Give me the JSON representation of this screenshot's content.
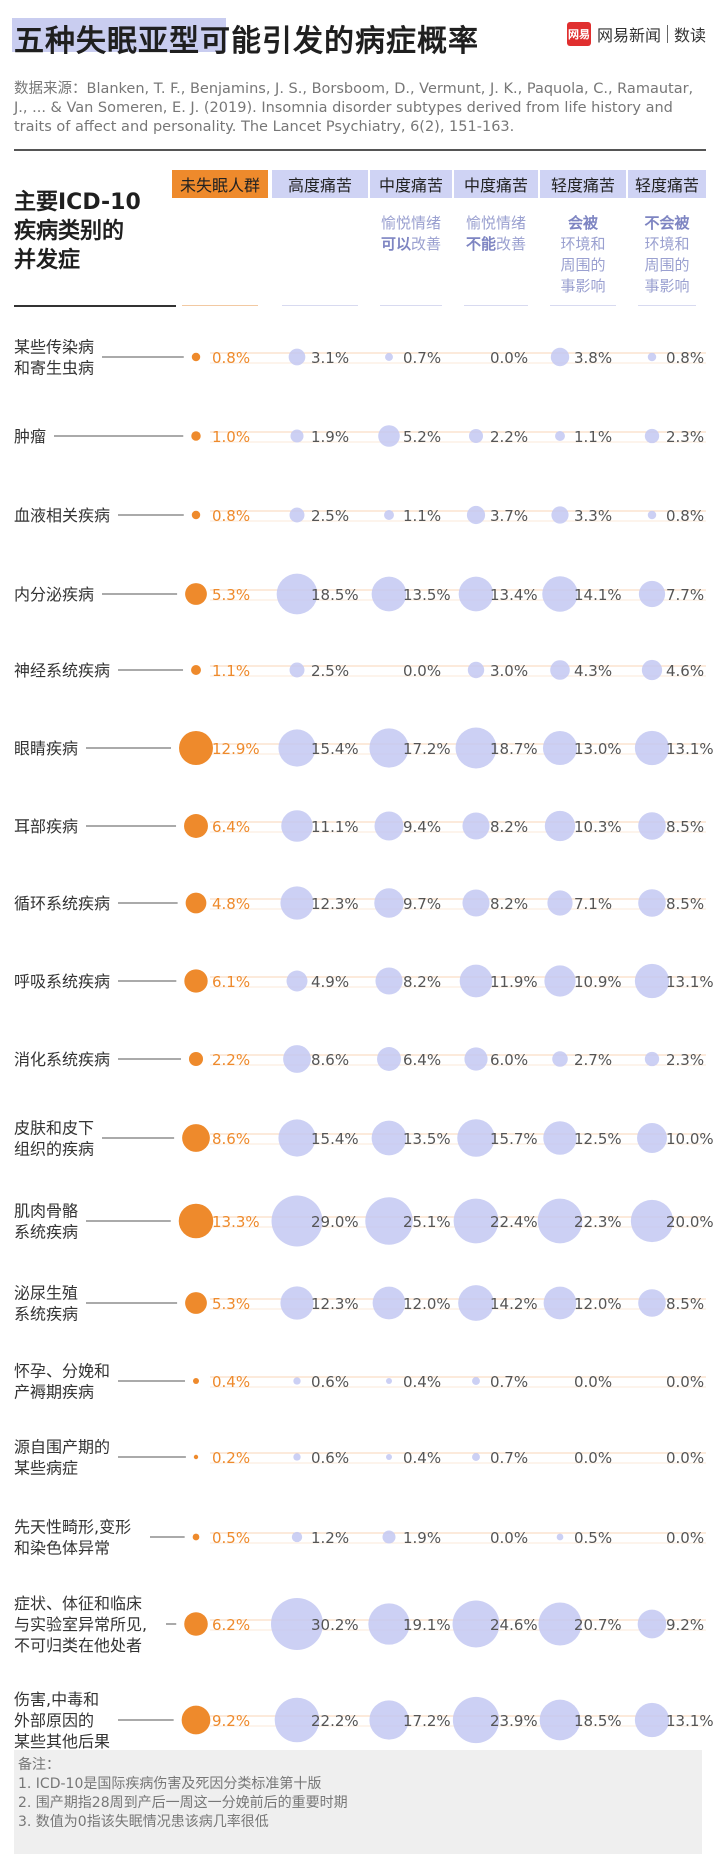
{
  "header": {
    "title_highlight": "五种失眠亚型",
    "title_rest": "可能引发的病症概率",
    "brand_logo": "网易",
    "brand_name": "网易新闻",
    "brand_section": "数读"
  },
  "source_text": "数据来源：Blanken, T. F., Benjamins, J. S., Borsboom, D., Vermunt, J. K., Paquola, C., Ramautar, J., ... & Van Someren, E. J. (2019). Insomnia disorder subtypes derived from life history and traits of affect and personality. The Lancet Psychiatry, 6(2), 151-163.",
  "notes": {
    "title": "备注：",
    "items": [
      "1. ICD-10是国际疾病伤害及死因分类标准第十版",
      "2. 围产期指28周到产后一周这一分娩前后的重要时期",
      "3. 数值为0指该失眠情况患该病几率很低"
    ]
  },
  "colors": {
    "base_bubble": "#ee8a2c",
    "subtype_bubble": "#c3c8f2",
    "base_label": "#ee8a2c",
    "subtype_label": "#555555",
    "row_line": "#f6c9a0"
  },
  "chart_data": {
    "type": "bubble-table",
    "title": "五种失眠亚型可能引发的病症概率",
    "row_axis_title": [
      "主要ICD-10",
      "疾病类别的",
      "并发症"
    ],
    "unit": "%",
    "columns": [
      {
        "name": "未失眠人群",
        "sub": []
      },
      {
        "name": "高度痛苦",
        "sub": []
      },
      {
        "name": "中度痛苦",
        "sub": [
          [
            {
              "t": "愉悦情绪",
              "b": false
            }
          ],
          [
            {
              "t": "可以",
              "b": true
            },
            {
              "t": "改善",
              "b": false
            }
          ]
        ]
      },
      {
        "name": "中度痛苦",
        "sub": [
          [
            {
              "t": "愉悦情绪",
              "b": false
            }
          ],
          [
            {
              "t": "不能",
              "b": true
            },
            {
              "t": "改善",
              "b": false
            }
          ]
        ]
      },
      {
        "name": "轻度痛苦",
        "sub": [
          [
            {
              "t": "会被",
              "b": true
            }
          ],
          [
            {
              "t": "环境和",
              "b": false
            }
          ],
          [
            {
              "t": "周围的",
              "b": false
            }
          ],
          [
            {
              "t": "事影响",
              "b": false
            }
          ]
        ]
      },
      {
        "name": "轻度痛苦",
        "sub": [
          [
            {
              "t": "不会被",
              "b": true
            }
          ],
          [
            {
              "t": "环境和",
              "b": false
            }
          ],
          [
            {
              "t": "周围的",
              "b": false
            }
          ],
          [
            {
              "t": "事影响",
              "b": false
            }
          ]
        ]
      }
    ],
    "rows": [
      {
        "label": [
          "某些传染病",
          "和寄生虫病"
        ],
        "values": [
          0.8,
          3.1,
          0.7,
          0.0,
          3.8,
          0.8
        ]
      },
      {
        "label": [
          "肿瘤"
        ],
        "values": [
          1.0,
          1.9,
          5.2,
          2.2,
          1.1,
          2.3
        ]
      },
      {
        "label": [
          "血液相关疾病"
        ],
        "values": [
          0.8,
          2.5,
          1.1,
          3.7,
          3.3,
          0.8
        ]
      },
      {
        "label": [
          "内分泌疾病"
        ],
        "values": [
          5.3,
          18.5,
          13.5,
          13.4,
          14.1,
          7.7
        ]
      },
      {
        "label": [
          "神经系统疾病"
        ],
        "values": [
          1.1,
          2.5,
          0.0,
          3.0,
          4.3,
          4.6
        ]
      },
      {
        "label": [
          "眼睛疾病"
        ],
        "values": [
          12.9,
          15.4,
          17.2,
          18.7,
          13.0,
          13.1
        ]
      },
      {
        "label": [
          "耳部疾病"
        ],
        "values": [
          6.4,
          11.1,
          9.4,
          8.2,
          10.3,
          8.5
        ]
      },
      {
        "label": [
          "循环系统疾病"
        ],
        "values": [
          4.8,
          12.3,
          9.7,
          8.2,
          7.1,
          8.5
        ]
      },
      {
        "label": [
          "呼吸系统疾病"
        ],
        "values": [
          6.1,
          4.9,
          8.2,
          11.9,
          10.9,
          13.1
        ]
      },
      {
        "label": [
          "消化系统疾病"
        ],
        "values": [
          2.2,
          8.6,
          6.4,
          6.0,
          2.7,
          2.3
        ]
      },
      {
        "label": [
          "皮肤和皮下",
          "组织的疾病"
        ],
        "values": [
          8.6,
          15.4,
          13.5,
          15.7,
          12.5,
          10.0
        ]
      },
      {
        "label": [
          "肌肉骨骼",
          "系统疾病"
        ],
        "values": [
          13.3,
          29.0,
          25.1,
          22.4,
          22.3,
          20.0
        ]
      },
      {
        "label": [
          "泌尿生殖",
          "系统疾病"
        ],
        "values": [
          5.3,
          12.3,
          12.0,
          14.2,
          12.0,
          8.5
        ]
      },
      {
        "label": [
          "怀孕、分娩和",
          "产褥期疾病"
        ],
        "values": [
          0.4,
          0.6,
          0.4,
          0.7,
          0.0,
          0.0
        ]
      },
      {
        "label": [
          "源自围产期的",
          "某些病症"
        ],
        "values": [
          0.2,
          0.6,
          0.4,
          0.7,
          0.0,
          0.0
        ]
      },
      {
        "label": [
          "先天性畸形,变形",
          "和染色体异常"
        ],
        "values": [
          0.5,
          1.2,
          1.9,
          0.0,
          0.5,
          0.0
        ]
      },
      {
        "label": [
          "症状、体征和临床",
          "与实验室异常所见,",
          "不可归类在他处者"
        ],
        "values": [
          6.2,
          30.2,
          19.1,
          24.6,
          20.7,
          9.2
        ]
      },
      {
        "label": [
          "伤害,中毒和",
          "外部原因的",
          "某些其他后果"
        ],
        "values": [
          9.2,
          22.2,
          17.2,
          23.9,
          18.5,
          13.1
        ]
      }
    ]
  }
}
